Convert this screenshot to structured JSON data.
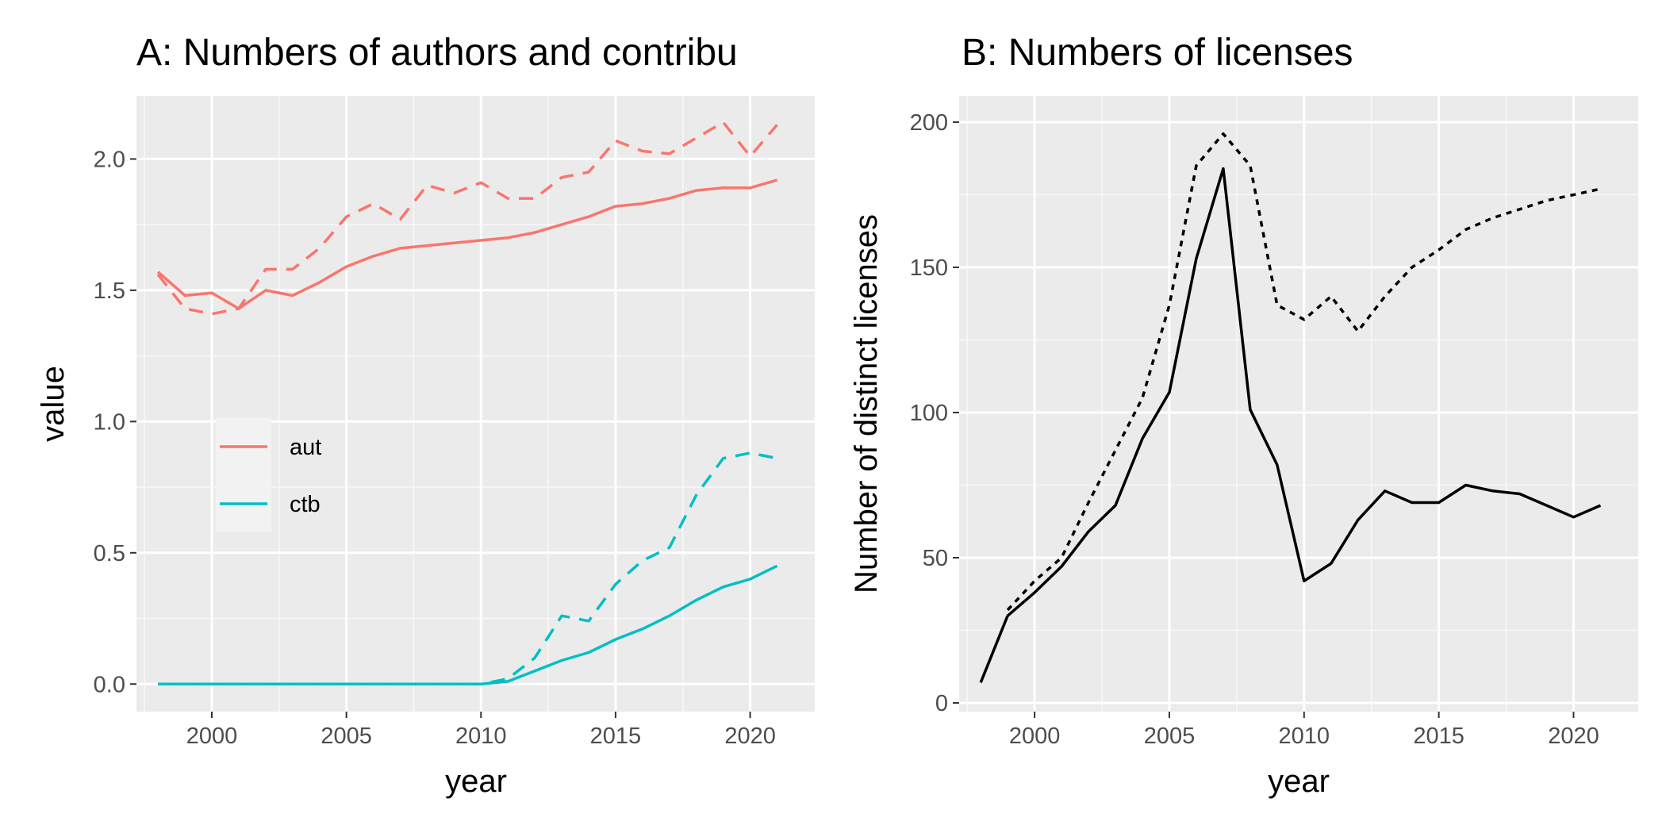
{
  "chart_data": [
    {
      "type": "line",
      "title": "A: Numbers of authors and contribu",
      "xlabel": "year",
      "ylabel": "value",
      "xlim": [
        1997.2,
        2022.4
      ],
      "ylim": [
        -0.105,
        2.24
      ],
      "x_ticks": [
        2000,
        2005,
        2010,
        2015,
        2020
      ],
      "x_tick_labels": [
        "2000",
        "2005",
        "2010",
        "2015",
        "2020"
      ],
      "y_ticks": [
        0.0,
        0.5,
        1.0,
        1.5,
        2.0
      ],
      "y_tick_labels": [
        "0.0",
        "0.5",
        "1.0",
        "1.5",
        "2.0"
      ],
      "grid": true,
      "legend_position": "inside-left",
      "legend": [
        {
          "label": "aut",
          "color": "#F8766D"
        },
        {
          "label": "ctb",
          "color": "#00BFC4"
        }
      ],
      "x": [
        1998,
        1999,
        2000,
        2001,
        2002,
        2003,
        2004,
        2005,
        2006,
        2007,
        2008,
        2009,
        2010,
        2011,
        2012,
        2013,
        2014,
        2015,
        2016,
        2017,
        2018,
        2019,
        2020,
        2021
      ],
      "series": [
        {
          "name": "aut",
          "line": "solid",
          "color": "#F8766D",
          "values": [
            1.57,
            1.48,
            1.49,
            1.43,
            1.5,
            1.48,
            1.53,
            1.59,
            1.63,
            1.66,
            1.67,
            1.68,
            1.69,
            1.7,
            1.72,
            1.75,
            1.78,
            1.82,
            1.83,
            1.85,
            1.88,
            1.89,
            1.89,
            1.92
          ]
        },
        {
          "name": "aut",
          "line": "dashed",
          "color": "#F8766D",
          "values": [
            1.56,
            1.43,
            1.41,
            1.43,
            1.58,
            1.58,
            1.66,
            1.78,
            1.83,
            1.77,
            1.9,
            1.87,
            1.91,
            1.85,
            1.85,
            1.93,
            1.95,
            2.07,
            2.03,
            2.02,
            2.08,
            2.14,
            2.01,
            2.13
          ]
        },
        {
          "name": "ctb",
          "line": "solid",
          "color": "#00BFC4",
          "values": [
            0.0,
            0.0,
            0.0,
            0.0,
            0.0,
            0.0,
            0.0,
            0.0,
            0.0,
            0.0,
            0.0,
            0.0,
            0.0,
            0.01,
            0.05,
            0.09,
            0.12,
            0.17,
            0.21,
            0.26,
            0.32,
            0.37,
            0.4,
            0.45
          ]
        },
        {
          "name": "ctb",
          "line": "dashed",
          "color": "#00BFC4",
          "values": [
            0.0,
            0.0,
            0.0,
            0.0,
            0.0,
            0.0,
            0.0,
            0.0,
            0.0,
            0.0,
            0.0,
            0.0,
            0.0,
            0.02,
            0.1,
            0.26,
            0.24,
            0.38,
            0.47,
            0.52,
            0.72,
            0.86,
            0.88,
            0.86
          ]
        }
      ]
    },
    {
      "type": "line",
      "title": "B: Numbers of licenses",
      "xlabel": "year",
      "ylabel": "Number of distinct licenses",
      "xlim": [
        1997.2,
        2022.4
      ],
      "ylim": [
        -3,
        209
      ],
      "x_ticks": [
        2000,
        2005,
        2010,
        2015,
        2020
      ],
      "x_tick_labels": [
        "2000",
        "2005",
        "2010",
        "2015",
        "2020"
      ],
      "y_ticks": [
        0,
        50,
        100,
        150,
        200
      ],
      "y_tick_labels": [
        "0",
        "50",
        "100",
        "150",
        "200"
      ],
      "grid": true,
      "x": [
        1998,
        1999,
        2000,
        2001,
        2002,
        2003,
        2004,
        2005,
        2006,
        2007,
        2008,
        2009,
        2010,
        2011,
        2012,
        2013,
        2014,
        2015,
        2016,
        2017,
        2018,
        2019,
        2020,
        2021
      ],
      "series": [
        {
          "line": "solid",
          "color": "#000000",
          "values": [
            null,
            30,
            38,
            47,
            59,
            68,
            91,
            107,
            153,
            184,
            101,
            82,
            42,
            48,
            63,
            73,
            69,
            69,
            75,
            73,
            72,
            68,
            64,
            68
          ]
        },
        {
          "line": "dotted",
          "color": "#000000",
          "values": [
            null,
            32,
            42,
            50,
            69,
            87,
            105,
            137,
            185,
            196,
            185,
            137,
            132,
            140,
            128,
            140,
            150,
            156,
            163,
            167,
            170,
            173,
            175,
            177
          ]
        },
        {
          "line": "solid",
          "color": "#000000",
          "values": [
            7,
            30,
            null,
            null,
            null,
            null,
            null,
            null,
            null,
            null,
            null,
            null,
            null,
            null,
            null,
            null,
            null,
            null,
            null,
            null,
            null,
            null,
            null,
            null
          ]
        }
      ]
    }
  ]
}
